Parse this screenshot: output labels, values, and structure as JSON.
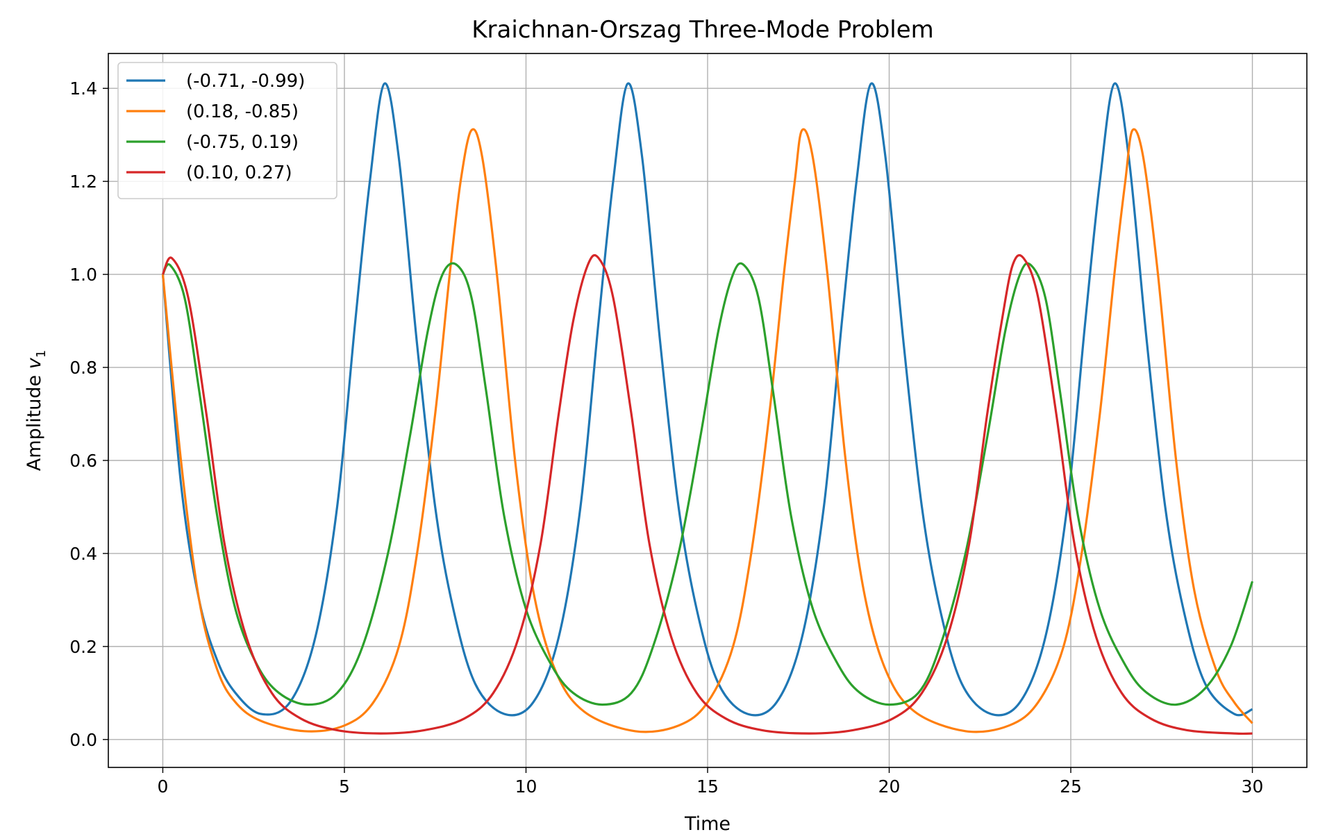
{
  "chart_data": {
    "type": "line",
    "title": "Kraichnan-Orszag Three-Mode Problem",
    "xlabel": "Time",
    "ylabel": "Amplitude",
    "ylabel_var": "v",
    "ylabel_sub": "1",
    "xlim": [
      -1.5,
      31.5
    ],
    "ylim": [
      -0.06,
      1.475
    ],
    "xticks": [
      0,
      5,
      10,
      15,
      20,
      25,
      30
    ],
    "xtick_labels": [
      "0",
      "5",
      "10",
      "15",
      "20",
      "25",
      "30"
    ],
    "yticks": [
      0.0,
      0.2,
      0.4,
      0.6,
      0.8,
      1.0,
      1.2,
      1.4
    ],
    "ytick_labels": [
      "0.0",
      "0.2",
      "0.4",
      "0.6",
      "0.8",
      "1.0",
      "1.2",
      "1.4"
    ],
    "grid": true,
    "legend_position": "top-left",
    "series": [
      {
        "name": "(-0.71, -0.99)",
        "color": "#1f77b4",
        "x": [
          0,
          0.5,
          1,
          1.5,
          2,
          2.7,
          3.5,
          4.2,
          4.8,
          5.3,
          5.7,
          6.1,
          6.5,
          7,
          7.5,
          8,
          8.6,
          9.4,
          10.2,
          10.9,
          11.5,
          12,
          12.4,
          12.8,
          13.2,
          13.7,
          14.2,
          14.7,
          15.3,
          16.1,
          16.9,
          17.6,
          18.2,
          18.7,
          19.1,
          19.5,
          19.9,
          20.4,
          20.9,
          21.4,
          22,
          22.8,
          23.6,
          24.3,
          24.9,
          25.4,
          25.8,
          26.2,
          26.6,
          27.1,
          27.6,
          28.1,
          28.7,
          29.5,
          30
        ],
        "y": [
          1.0,
          0.55,
          0.3,
          0.17,
          0.1,
          0.055,
          0.08,
          0.22,
          0.5,
          0.9,
          1.2,
          1.41,
          1.25,
          0.85,
          0.5,
          0.28,
          0.12,
          0.055,
          0.08,
          0.22,
          0.5,
          0.9,
          1.2,
          1.41,
          1.25,
          0.85,
          0.5,
          0.28,
          0.12,
          0.055,
          0.08,
          0.22,
          0.5,
          0.9,
          1.2,
          1.41,
          1.25,
          0.85,
          0.5,
          0.28,
          0.12,
          0.055,
          0.08,
          0.22,
          0.5,
          0.9,
          1.2,
          1.41,
          1.25,
          0.85,
          0.5,
          0.28,
          0.12,
          0.055,
          0.065
        ]
      },
      {
        "name": "(0.18, -0.85)",
        "color": "#ff7f0e",
        "x": [
          0,
          0.5,
          1,
          1.5,
          2,
          2.7,
          3.9,
          5,
          5.8,
          6.5,
          7,
          7.5,
          7.9,
          8.2,
          8.5,
          8.8,
          9.2,
          9.7,
          10.2,
          10.8,
          11.6,
          13,
          14.2,
          15,
          15.7,
          16.2,
          16.7,
          17.1,
          17.4,
          17.6,
          17.9,
          18.3,
          18.8,
          19.3,
          19.9,
          20.7,
          22.1,
          23.3,
          24.1,
          24.8,
          25.3,
          25.8,
          26.2,
          26.5,
          26.7,
          27,
          27.4,
          27.9,
          28.4,
          29,
          29.5,
          30
        ],
        "y": [
          1.0,
          0.6,
          0.3,
          0.15,
          0.08,
          0.04,
          0.018,
          0.03,
          0.08,
          0.2,
          0.4,
          0.7,
          1.0,
          1.2,
          1.31,
          1.25,
          1.0,
          0.6,
          0.32,
          0.15,
          0.06,
          0.018,
          0.03,
          0.08,
          0.2,
          0.4,
          0.7,
          1.0,
          1.2,
          1.31,
          1.25,
          1.0,
          0.6,
          0.32,
          0.15,
          0.06,
          0.018,
          0.03,
          0.08,
          0.2,
          0.4,
          0.7,
          1.0,
          1.2,
          1.31,
          1.25,
          1.0,
          0.6,
          0.32,
          0.15,
          0.08,
          0.035
        ]
      },
      {
        "name": "(-0.75, 0.19)",
        "color": "#2ca02c",
        "x": [
          0,
          0.2,
          0.6,
          1,
          1.5,
          2,
          2.6,
          3.2,
          4,
          4.8,
          5.5,
          6.2,
          6.8,
          7.3,
          7.7,
          8.1,
          8.5,
          8.9,
          9.4,
          10,
          10.7,
          11.3,
          12.1,
          12.9,
          13.5,
          14.2,
          14.8,
          15.3,
          15.7,
          16,
          16.4,
          16.8,
          17.3,
          17.9,
          18.6,
          19.2,
          20,
          20.8,
          21.4,
          22.1,
          22.7,
          23.2,
          23.6,
          23.9,
          24.3,
          24.7,
          25.2,
          25.8,
          26.5,
          27.1,
          27.9,
          28.7,
          29.4,
          30
        ],
        "y": [
          1.0,
          1.02,
          0.95,
          0.75,
          0.48,
          0.28,
          0.16,
          0.1,
          0.075,
          0.1,
          0.2,
          0.4,
          0.65,
          0.88,
          1.0,
          1.02,
          0.95,
          0.75,
          0.48,
          0.28,
          0.16,
          0.1,
          0.075,
          0.1,
          0.2,
          0.4,
          0.65,
          0.88,
          1.0,
          1.02,
          0.95,
          0.75,
          0.48,
          0.28,
          0.16,
          0.1,
          0.075,
          0.1,
          0.2,
          0.4,
          0.65,
          0.88,
          1.0,
          1.02,
          0.95,
          0.75,
          0.48,
          0.28,
          0.16,
          0.1,
          0.075,
          0.11,
          0.2,
          0.34
        ]
      },
      {
        "name": "(0.10, 0.27)",
        "color": "#d62728",
        "x": [
          0,
          0.25,
          0.7,
          1.2,
          1.7,
          2.3,
          3,
          3.8,
          4.8,
          6,
          7.2,
          8.3,
          9.1,
          9.8,
          10.4,
          10.9,
          11.3,
          11.7,
          12,
          12.4,
          12.9,
          13.4,
          14,
          14.7,
          15.5,
          16.5,
          17.8,
          19,
          20.1,
          20.9,
          21.6,
          22.2,
          22.7,
          23.1,
          23.4,
          23.7,
          24.1,
          24.6,
          25.1,
          25.7,
          26.4,
          27.2,
          28.2,
          29.5,
          30
        ],
        "y": [
          1.0,
          1.035,
          0.95,
          0.7,
          0.42,
          0.22,
          0.1,
          0.045,
          0.02,
          0.013,
          0.02,
          0.045,
          0.1,
          0.22,
          0.42,
          0.7,
          0.9,
          1.02,
          1.035,
          0.95,
          0.7,
          0.42,
          0.22,
          0.1,
          0.045,
          0.02,
          0.013,
          0.02,
          0.045,
          0.1,
          0.22,
          0.42,
          0.7,
          0.9,
          1.02,
          1.035,
          0.95,
          0.7,
          0.42,
          0.22,
          0.1,
          0.045,
          0.02,
          0.013,
          0.013
        ]
      }
    ]
  }
}
